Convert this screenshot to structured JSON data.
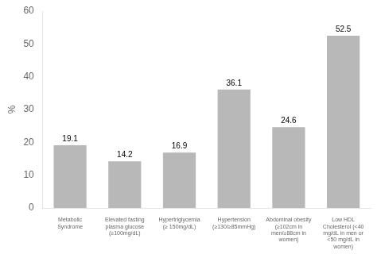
{
  "chart_data": {
    "type": "bar",
    "categories": [
      "Metabolic\nSyndrome",
      "Elevated fasting\nplasma glucose\n(≥100mg/dL)",
      "Hypertriglycemia\n(≥ 150mg/dL)",
      "Hypertension\n(≥130/≥85mmHg)",
      "Abdominal obesity\n(≥102cm in\nmen/≥88cm in\nwomen)",
      "Low HDL\nCholesterol (<40\nmg/dL in men or\n<50 mg/dL in\nwomen)"
    ],
    "values": [
      19.1,
      14.2,
      16.9,
      36.1,
      24.6,
      52.5
    ],
    "color": "#b8b8b8",
    "ylabel": "%",
    "ylim": [
      0,
      60
    ],
    "yticks": [
      0,
      10,
      20,
      30,
      40,
      50,
      60
    ],
    "data_labels": true,
    "grid": false
  }
}
